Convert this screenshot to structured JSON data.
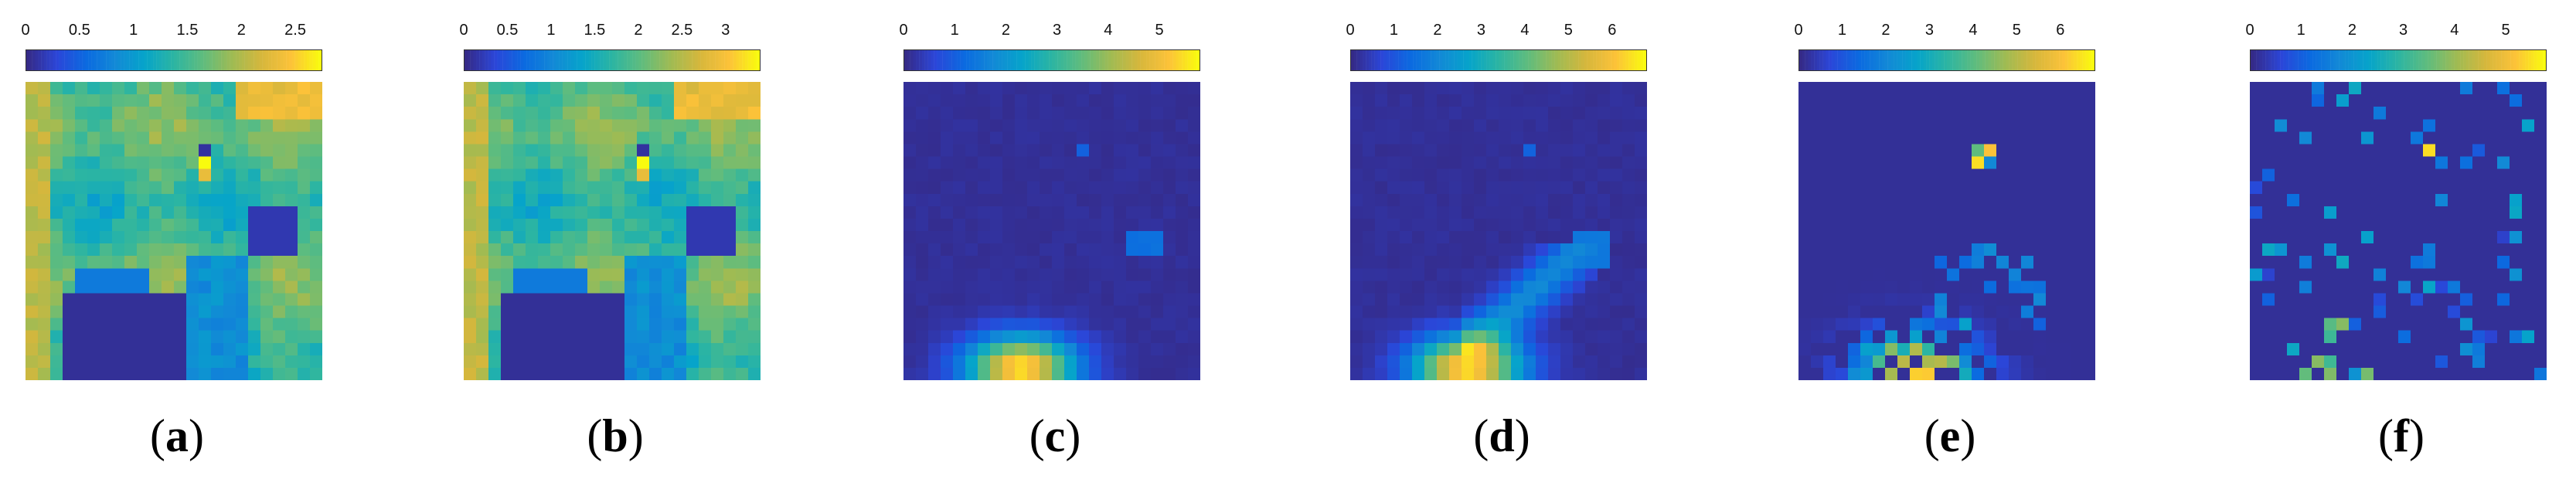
{
  "chart_data": [
    {
      "type": "heatmap",
      "panel": "a",
      "caption_letter": "a",
      "colorbar_ticks": [
        "0",
        "0.5",
        "1",
        "1.5",
        "2",
        "2.5"
      ],
      "clim": [
        0,
        2.75
      ],
      "colormap": "parula",
      "grid": {
        "rows": 24,
        "cols": 24,
        "notes": "smooth map, high-value band on left edge, dark low region bottom-left and right-centre, hotspot with blue/yellow pair near top-centre"
      }
    },
    {
      "type": "heatmap",
      "panel": "b",
      "caption_letter": "b",
      "colorbar_ticks": [
        "0",
        "0.5",
        "1",
        "1.5",
        "2",
        "2.5",
        "3"
      ],
      "clim": [
        0,
        3.4
      ],
      "colormap": "parula",
      "grid": {
        "rows": 24,
        "cols": 24,
        "notes": "similar to (a)"
      }
    },
    {
      "type": "heatmap",
      "panel": "c",
      "caption_letter": "c",
      "colorbar_ticks": [
        "0",
        "1",
        "2",
        "3",
        "4",
        "5"
      ],
      "clim": [
        0,
        5.8
      ],
      "colormap": "parula",
      "grid": {
        "rows": 24,
        "cols": 24,
        "notes": "mostly low, bright blob at bottom-centre, small spots upper-right"
      }
    },
    {
      "type": "heatmap",
      "panel": "d",
      "caption_letter": "d",
      "colorbar_ticks": [
        "0",
        "1",
        "2",
        "3",
        "4",
        "5",
        "6"
      ],
      "clim": [
        0,
        6.8
      ],
      "colormap": "parula",
      "grid": {
        "rows": 24,
        "cols": 24,
        "notes": "mostly low, bright blob bottom-centre with diagonal plume to upper right"
      }
    },
    {
      "type": "heatmap",
      "panel": "e",
      "caption_letter": "e",
      "colorbar_ticks": [
        "0",
        "1",
        "2",
        "3",
        "4",
        "5",
        "6"
      ],
      "clim": [
        0,
        6.8
      ],
      "colormap": "parula",
      "grid": {
        "rows": 24,
        "cols": 24,
        "notes": "noisy version of (d), hotspot near top-centre"
      }
    },
    {
      "type": "heatmap",
      "panel": "f",
      "caption_letter": "f",
      "colorbar_ticks": [
        "0",
        "1",
        "2",
        "3",
        "4",
        "5"
      ],
      "clim": [
        0,
        5.8
      ],
      "colormap": "parula",
      "grid": {
        "rows": 24,
        "cols": 24,
        "notes": "sparse scattered pixels, mostly low, one bright pixel near top-centre"
      }
    }
  ]
}
